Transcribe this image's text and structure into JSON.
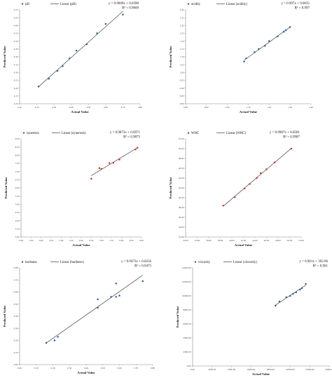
{
  "chart_data": [
    {
      "type": "scatter",
      "series": [
        {
          "name": "pH",
          "x": [
            4.21,
            4.27,
            4.32,
            4.35,
            4.39,
            4.43,
            4.49,
            4.55,
            4.6,
            4.7
          ],
          "y": [
            4.21,
            4.26,
            4.31,
            4.34,
            4.39,
            4.44,
            4.48,
            4.55,
            4.61,
            4.67
          ]
        }
      ],
      "trendline_label": "Linear (pH)",
      "equation": "y = 0.9609x + 0.0398",
      "r2": "R² = 0.9609",
      "xlabel": "Actual Value",
      "ylabel": "Predicted Value",
      "xlim": [
        4.1,
        4.8
      ],
      "ylim": [
        4.1,
        4.7
      ],
      "xticks": [
        "4.10",
        "4.20",
        "4.30",
        "4.40",
        "4.50",
        "4.60",
        "4.70",
        "4.80"
      ],
      "yticks": [
        "4.10",
        "4.15",
        "4.20",
        "4.25",
        "4.30",
        "4.35",
        "4.40",
        "4.45",
        "4.50",
        "4.55",
        "4.60",
        "4.65",
        "4.70"
      ],
      "grid": false,
      "legend": "top"
    },
    {
      "type": "scatter",
      "series": [
        {
          "name": "acidity",
          "x": [
            1.08,
            1.09,
            1.13,
            1.15,
            1.18,
            1.2,
            1.24,
            1.27,
            1.28,
            1.3
          ],
          "y": [
            1.07,
            1.09,
            1.13,
            1.15,
            1.17,
            1.2,
            1.23,
            1.26,
            1.27,
            1.29
          ]
        }
      ],
      "trendline_label": "Linear (acidity)",
      "equation": "y = 0.997x + 0.0035",
      "r2": "R² = 0.997",
      "xlabel": "Actual Value",
      "ylabel": "Predicted Value",
      "xlim": [
        0.8,
        1.4
      ],
      "ylim": [
        0.8,
        1.4
      ],
      "xticks": [
        "0.80",
        "0.90",
        "1.00",
        "1.10",
        "1.20",
        "1.30",
        "1.40"
      ],
      "yticks": [
        "0.80",
        "0.85",
        "0.90",
        "0.95",
        "1.00",
        "1.05",
        "1.10",
        "1.15",
        "1.20",
        "1.25",
        "1.30",
        "1.35",
        "1.40"
      ],
      "grid": false,
      "legend": "top"
    },
    {
      "type": "scatter",
      "series": [
        {
          "name": "syneresis",
          "x": [
            6.5,
            6.9,
            7.0,
            7.4,
            7.6,
            7.9,
            8.7,
            8.8
          ],
          "y": [
            6.56,
            7.21,
            7.16,
            7.52,
            7.54,
            7.73,
            8.35,
            8.46
          ]
        }
      ],
      "trendline_label": "Linear (syneresis)",
      "equation": "y = 0.9873x + 0.0971",
      "r2": "R² = 0.9873",
      "xlabel": "Actual Value",
      "ylabel": "Predicted Value",
      "xlim": [
        3.0,
        9.0
      ],
      "ylim": [
        3.0,
        9.0
      ],
      "xticks": [
        "3.00",
        "3.50",
        "4.00",
        "4.50",
        "5.00",
        "5.50",
        "6.00",
        "6.50",
        "7.00",
        "7.50",
        "8.00",
        "8.50",
        "9.00"
      ],
      "yticks": [
        "3.00",
        "3.50",
        "4.00",
        "4.50",
        "5.00",
        "5.50",
        "6.00",
        "6.50",
        "7.00",
        "7.50",
        "8.00",
        "8.50",
        "9.00"
      ],
      "grid": false,
      "legend": "top"
    },
    {
      "type": "scatter",
      "series": [
        {
          "name": "WHC",
          "x": [
            38.5,
            40.5,
            42.2,
            43.1,
            44.3,
            45.0,
            46.0,
            47.4,
            50.3
          ],
          "y": [
            38.4,
            40.1,
            41.9,
            42.8,
            44.0,
            45.0,
            45.8,
            47.2,
            50.0
          ]
        }
      ],
      "trendline_label": "Linear (WHC)",
      "equation": "y = 0.9987x + 0.0581",
      "r2": "R² = 0.9987",
      "xlabel": "Actual Value",
      "ylabel": "Predicted Value",
      "xlim": [
        32.0,
        52.0
      ],
      "ylim": [
        32.0,
        52.0
      ],
      "xticks": [
        "32.00",
        "34.00",
        "36.00",
        "38.00",
        "40.00",
        "42.00",
        "44.00",
        "46.00",
        "48.00",
        "50.00",
        "52.00"
      ],
      "yticks": [
        "32.00",
        "34.00",
        "36.00",
        "38.00",
        "40.00",
        "42.00",
        "44.00",
        "46.00",
        "48.00",
        "50.00",
        "52.00"
      ],
      "grid": false,
      "legend": "top"
    },
    {
      "type": "scatter",
      "series": [
        {
          "name": "hardness",
          "x": [
            0.16,
            0.21,
            0.23,
            0.47,
            0.47,
            0.55,
            0.58,
            0.58,
            0.6,
            0.74
          ],
          "y": [
            0.18,
            0.2,
            0.23,
            0.47,
            0.54,
            0.56,
            0.67,
            0.56,
            0.57,
            0.69
          ]
        }
      ],
      "trendline_label": "Linear (hardness)",
      "equation": "y = 0.9473x + 0.0256",
      "r2": "R² = 0.9473",
      "xlabel": "Actual Value",
      "ylabel": "Predicted Value",
      "xlim": [
        0.0,
        0.8
      ],
      "ylim": [
        0.0,
        0.8
      ],
      "xticks": [
        "0.00",
        "0.10",
        "0.20",
        "0.30",
        "0.40",
        "0.50",
        "0.60",
        "0.70",
        "0.80"
      ],
      "yticks": [
        "0.00",
        "0.10",
        "0.20",
        "0.30",
        "0.40",
        "0.50",
        "0.60",
        "0.70",
        "0.80"
      ],
      "grid": false,
      "legend": "top"
    },
    {
      "type": "scatter",
      "series": [
        {
          "name": "viscosity",
          "x": [
            8500,
            8900,
            9600,
            10000,
            10300,
            10600,
            11000,
            11200,
            11600
          ],
          "y": [
            8600,
            9200,
            9800,
            10000,
            10300,
            10500,
            10900,
            11100,
            11700
          ]
        }
      ],
      "trendline_label": "Linear (viscosity)",
      "equation": "y = 0.961x + 392.06",
      "r2": "R² = 0.961",
      "xlabel": "Actual Value",
      "ylabel": "Predicted Value",
      "xlim": [
        0,
        14000
      ],
      "ylim": [
        0,
        14000
      ],
      "xticks": [
        "0.00",
        "2000.00",
        "4000.00",
        "6000.00",
        "8000.00",
        "10000.00",
        "12000.00",
        "14000.00"
      ],
      "yticks": [
        "0.00",
        "2000.00",
        "4000.00",
        "6000.00",
        "8000.00",
        "10000.00",
        "12000.00",
        "14000.00"
      ],
      "grid": false,
      "legend": "top"
    }
  ],
  "colors": {
    "ph": "#2e5e9e",
    "acidity": "#2e5e9e",
    "syneresis": "#c0392b",
    "whc": "#c0392b",
    "hardness": "#2e5e9e",
    "viscosity": "#2e5e9e",
    "line": "#222222",
    "axis": "#888888"
  }
}
